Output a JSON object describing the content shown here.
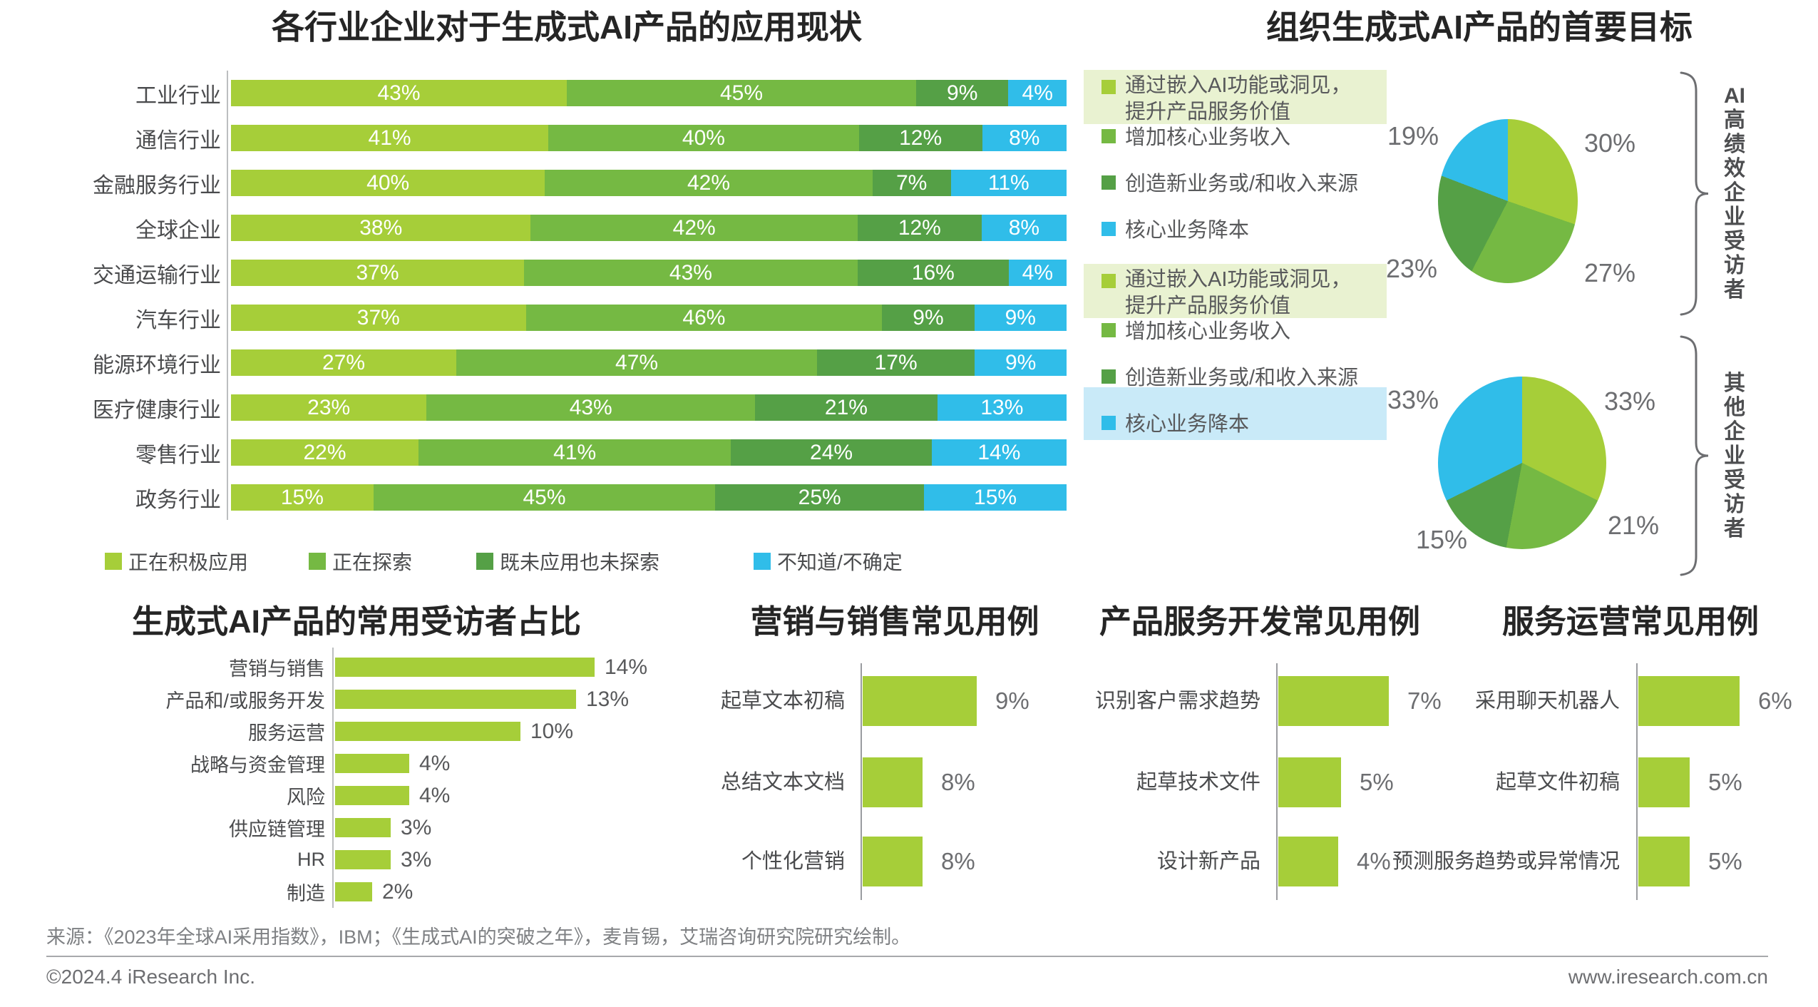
{
  "palette": {
    "series": [
      "#a6ce39",
      "#75b943",
      "#55a046",
      "#30bde9"
    ],
    "highlight_green_bg": "#e9f2d1",
    "highlight_blue_bg": "#c9eaf8",
    "title_color": "#252525",
    "label_grey": "#4a4b4d",
    "value_grey": "#6d6e71",
    "bar_green": "#a6ce39"
  },
  "chart_data": [
    {
      "id": "industry_adoption",
      "type": "bar",
      "subtype": "stacked-horizontal",
      "title": "各行业企业对于生成式AI产品的应用现状",
      "unit": "%",
      "legend_position": "bottom",
      "categories": [
        "工业行业",
        "通信行业",
        "金融服务行业",
        "全球企业",
        "交通运输行业",
        "汽车行业",
        "能源环境行业",
        "医疗健康行业",
        "零售行业",
        "政务行业"
      ],
      "series": [
        {
          "name": "正在积极应用",
          "values": [
            43,
            41,
            40,
            38,
            37,
            37,
            27,
            23,
            22,
            15
          ]
        },
        {
          "name": "正在探索",
          "values": [
            45,
            40,
            42,
            42,
            43,
            46,
            47,
            43,
            41,
            45
          ]
        },
        {
          "name": "既未应用也未探索",
          "values": [
            9,
            12,
            7,
            12,
            16,
            9,
            17,
            21,
            24,
            25
          ]
        },
        {
          "name": "不知道/不确定",
          "values": [
            4,
            8,
            11,
            8,
            4,
            9,
            9,
            13,
            14,
            15
          ]
        }
      ]
    },
    {
      "id": "goals_high_performers",
      "type": "pie",
      "title": "组织生成式AI产品的首要目标",
      "group_label": "AI高绩效企业受访者",
      "legend": [
        "通过嵌入AI功能或洞见，提升产品服务价值",
        "增加核心业务收入",
        "创造新业务或/和收入来源",
        "核心业务降本"
      ],
      "values": [
        30,
        27,
        23,
        19
      ],
      "value_labels": [
        "30%",
        "27%",
        "23%",
        "19%"
      ],
      "highlighted_legend_indexes": [
        0
      ]
    },
    {
      "id": "goals_others",
      "type": "pie",
      "title": "",
      "group_label": "其他企业受访者",
      "legend": [
        "通过嵌入AI功能或洞见，提升产品服务价值",
        "增加核心业务收入",
        "创造新业务或/和收入来源",
        "核心业务降本"
      ],
      "values": [
        33,
        21,
        15,
        33
      ],
      "value_labels": [
        "33%",
        "21%",
        "15%",
        "33%"
      ],
      "highlighted_legend_indexes": [
        0,
        3
      ]
    },
    {
      "id": "respondent_share",
      "type": "bar",
      "title": "生成式AI产品的常用受访者占比",
      "unit": "%",
      "categories": [
        "营销与销售",
        "产品和/或服务开发",
        "服务运营",
        "战略与资金管理",
        "风险",
        "供应链管理",
        "HR",
        "制造"
      ],
      "values": [
        14,
        13,
        10,
        4,
        4,
        3,
        3,
        2
      ]
    },
    {
      "id": "use_cases_marketing",
      "type": "bar",
      "title": "营销与销售常见用例",
      "unit": "%",
      "categories": [
        "起草文本初稿",
        "总结文本文档",
        "个性化营销"
      ],
      "values": [
        9,
        8,
        8
      ]
    },
    {
      "id": "use_cases_product",
      "type": "bar",
      "title": "产品服务开发常见用例",
      "unit": "%",
      "categories": [
        "识别客户需求趋势",
        "起草技术文件",
        "设计新产品"
      ],
      "values": [
        7,
        5,
        4
      ]
    },
    {
      "id": "use_cases_service",
      "type": "bar",
      "title": "服务运营常见用例",
      "unit": "%",
      "categories": [
        "采用聊天机器人",
        "起草文件初稿",
        "预测服务趋势或异常情况"
      ],
      "values": [
        6,
        5,
        5
      ]
    }
  ],
  "footer": {
    "source": "来源：《2023年全球AI采用指数》，IBM；《生成式AI的突破之年》，麦肯锡，艾瑞咨询研究院研究绘制。",
    "copyright": "©2024.4 iResearch Inc.",
    "website": "www.iresearch.com.cn"
  }
}
